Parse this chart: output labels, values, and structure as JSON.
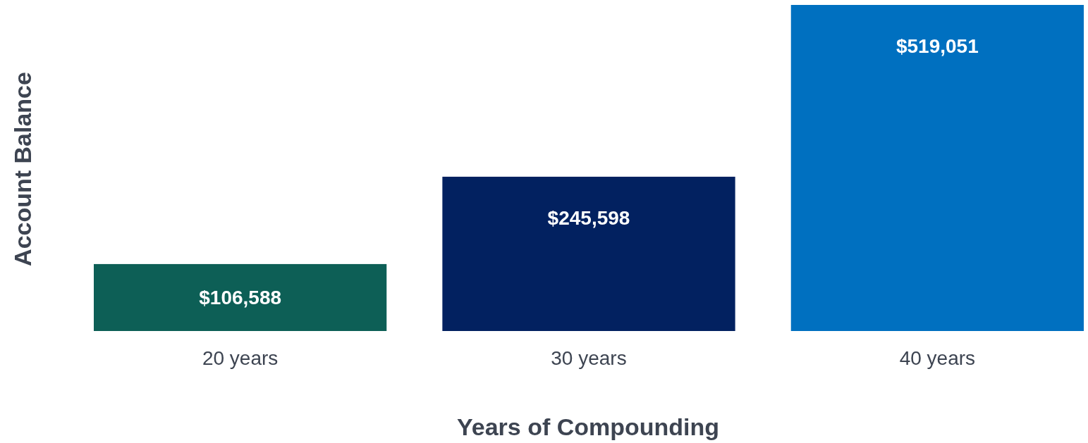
{
  "chart_data": {
    "type": "bar",
    "xlabel": "Years of Compounding",
    "ylabel": "Account Balance",
    "categories": [
      "20 years",
      "30 years",
      "40 years"
    ],
    "values": [
      106588,
      245598,
      519051
    ],
    "colors": [
      "#0d5f56",
      "#022160",
      "#0070c0"
    ],
    "value_labels": [
      "$106,588",
      "$245,598",
      "$519,051"
    ],
    "tick_labels": "x"
  }
}
